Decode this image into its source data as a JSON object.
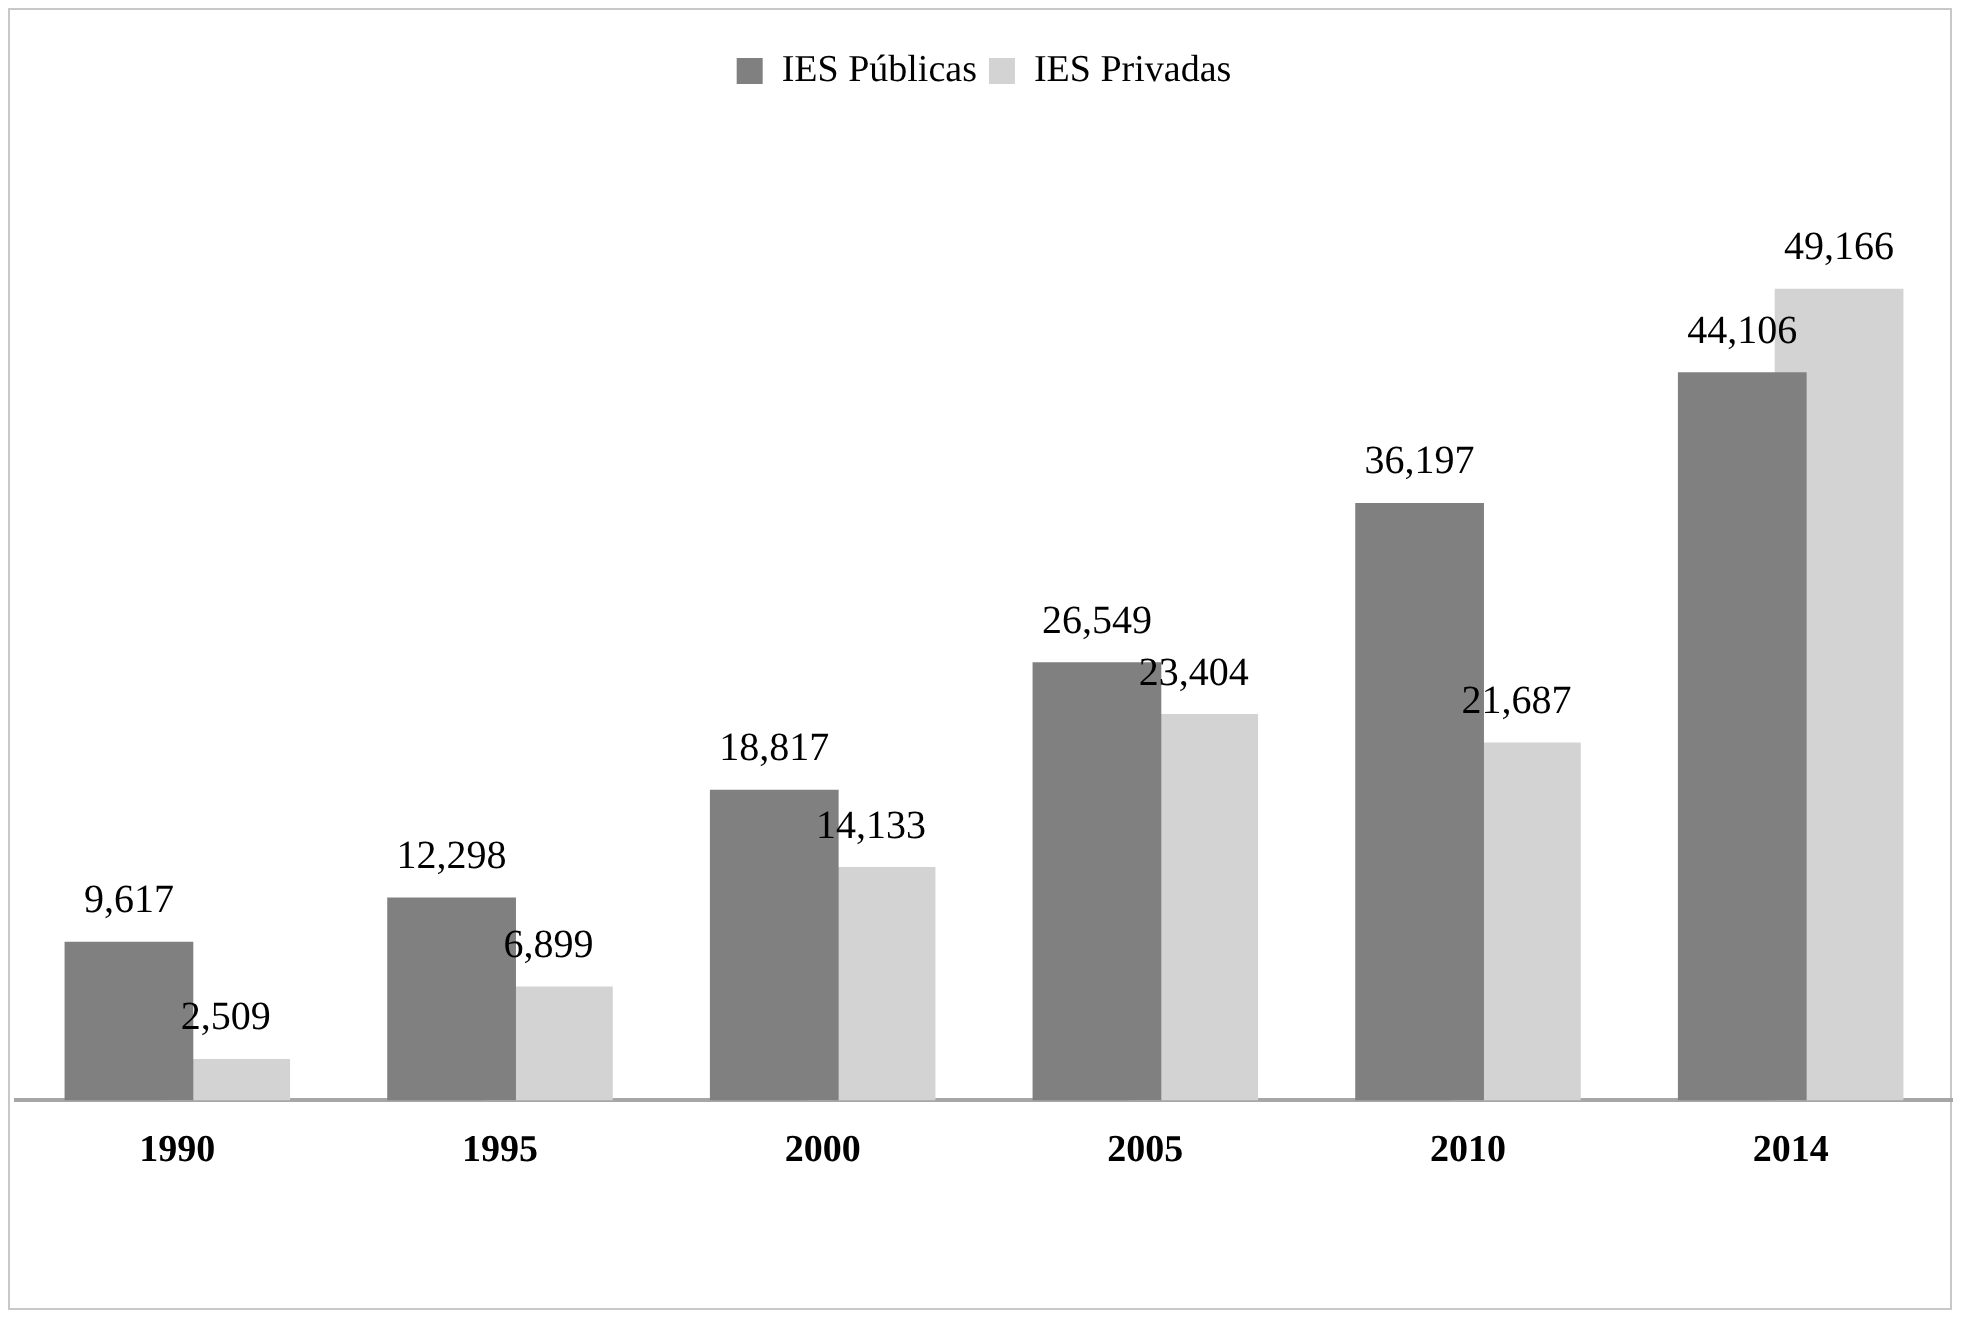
{
  "chart_data": {
    "type": "bar",
    "categories": [
      "1990",
      "1995",
      "2000",
      "2005",
      "2010",
      "2014"
    ],
    "series": [
      {
        "name": "IES Públicas",
        "color": "#808080",
        "values": [
          9617,
          12298,
          18817,
          26549,
          36197,
          44106
        ],
        "value_labels": [
          "9,617",
          "12,298",
          "18,817",
          "26,549",
          "36,197",
          "44,106"
        ]
      },
      {
        "name": "IES Privadas",
        "color": "#d3d3d3",
        "values": [
          2509,
          6899,
          14133,
          23404,
          21687,
          49166
        ],
        "value_labels": [
          "2,509",
          "6,899",
          "14,133",
          "23,404",
          "21,687",
          "49,166"
        ]
      }
    ],
    "legend": "top",
    "grid": false
  }
}
